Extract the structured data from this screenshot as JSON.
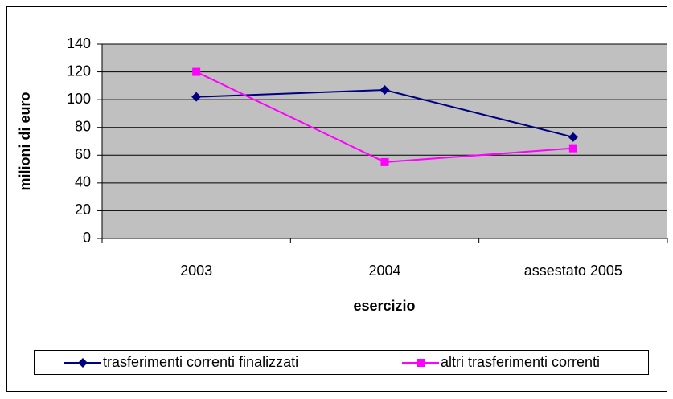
{
  "chart_data": {
    "type": "line",
    "y_label": "milioni di euro",
    "x_label": "esercizio",
    "categories": [
      "2003",
      "2004",
      "assestato 2005"
    ],
    "series": [
      {
        "name": "trasferimenti correnti finalizzati",
        "color": "#000080",
        "marker": "diamond",
        "values": [
          102,
          107,
          73
        ]
      },
      {
        "name": "altri trasferimenti correnti",
        "color": "#ff00ff",
        "marker": "square",
        "values": [
          120,
          55,
          65
        ]
      }
    ],
    "ylim": [
      0,
      140
    ],
    "yticks": [
      0,
      20,
      40,
      60,
      80,
      100,
      120,
      140
    ],
    "grid": true,
    "legend": "bottom"
  }
}
